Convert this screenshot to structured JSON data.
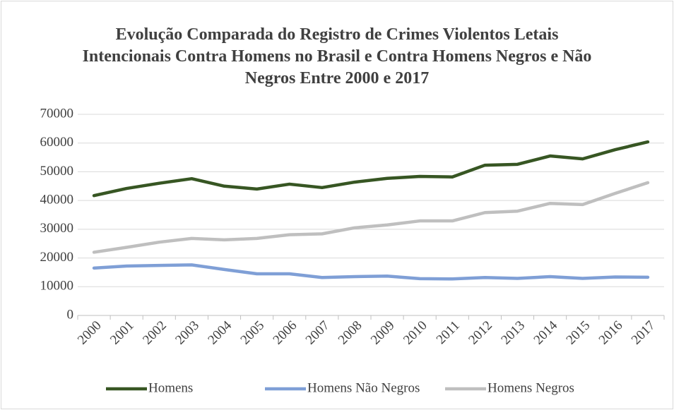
{
  "chart_data": {
    "type": "line",
    "title": "Evolução Comparada do Registro de Crimes Violentos Letais Intencionais Contra Homens no Brasil e Contra Homens Negros e Não Negros Entre 2000 e 2017",
    "categories": [
      "2000",
      "2001",
      "2002",
      "2003",
      "2004",
      "2005",
      "2006",
      "2007",
      "2008",
      "2009",
      "2010",
      "2011",
      "2012",
      "2013",
      "2014",
      "2015",
      "2016",
      "2017"
    ],
    "series": [
      {
        "name": "Homens",
        "color": "#375623",
        "values": [
          41700,
          44200,
          46000,
          47600,
          45000,
          44000,
          45700,
          44500,
          46400,
          47700,
          48400,
          48200,
          52300,
          52600,
          55500,
          54500,
          57700,
          60400
        ]
      },
      {
        "name": "Homens Não Negros",
        "color": "#7f9fd6",
        "values": [
          16500,
          17200,
          17400,
          17600,
          16000,
          14500,
          14500,
          13200,
          13500,
          13700,
          12800,
          12700,
          13200,
          12900,
          13500,
          12900,
          13400,
          13300
        ]
      },
      {
        "name": "Homens Negros",
        "color": "#bfbfbf",
        "values": [
          22000,
          23700,
          25500,
          26800,
          26300,
          26800,
          28100,
          28400,
          30500,
          31500,
          32900,
          32900,
          35800,
          36300,
          39000,
          38600,
          42500,
          46200
        ]
      }
    ],
    "ylim": [
      0,
      70000
    ],
    "yticks": [
      0,
      10000,
      20000,
      30000,
      40000,
      50000,
      60000,
      70000
    ],
    "grid": true,
    "legend": "bottom"
  }
}
